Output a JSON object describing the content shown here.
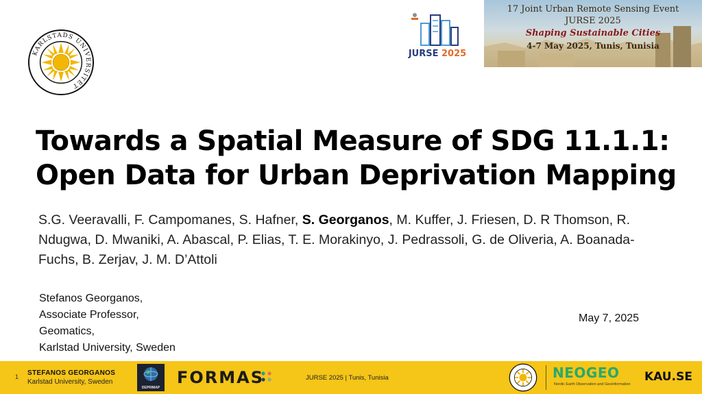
{
  "logos": {
    "main_seal_text": "KARLSTADS UNIVERSITET",
    "jurse_logo_text": "JURSE",
    "jurse_logo_year": "2025"
  },
  "banner": {
    "line1": "17 Joint Urban Remote Sensing Event",
    "line2": "JURSE 2025",
    "line3": "Shaping Sustainable Cities",
    "line4": "4-7 May 2025, Tunis, Tunisia"
  },
  "title": {
    "line1": "Towards a Spatial Measure of SDG 11.1.1:",
    "line2": "Open Data for Urban Deprivation Mapping"
  },
  "authors": {
    "before_bold": "S.G. Veeravalli, F. Campomanes, S. Hafner, ",
    "bold": "S. Georganos",
    "after_bold": ", M. Kuffer, J. Friesen, D. R Thomson, R. Ndugwa, D. Mwaniki, A. Abascal, P. Elias, T. E. Morakinyo, J. Pedrassoli, G. de Oliveria, A. Boanada-Fuchs, B. Zerjav, J. M. D’Attoli"
  },
  "presenter": {
    "line1": "Stefanos Georganos,",
    "line2": "Associate Professor,",
    "line3": "Geomatics,",
    "line4": "Karlstad University, Sweden"
  },
  "date": "May 7, 2025",
  "footer": {
    "slide_number": "1",
    "name": "STEFANOS GEORGANOS",
    "affiliation": "Karlstad University, Sweden",
    "deprimap_label": "DEPRIMAP",
    "formas_label": "FORMAS",
    "event": "JURSE 2025 | Tunis, Tunisia",
    "neogeo_label": "NEOGEO",
    "neogeo_sub": "Nordic Earth Observation and Geoinformation",
    "kau_label": "KAU.SE"
  },
  "colors": {
    "footer_bg": "#f5c518",
    "sun": "#f2b705",
    "jurse_blue": "#2a3d7c",
    "jurse_orange": "#e06b2a",
    "neogeo_green": "#2aa86a"
  }
}
